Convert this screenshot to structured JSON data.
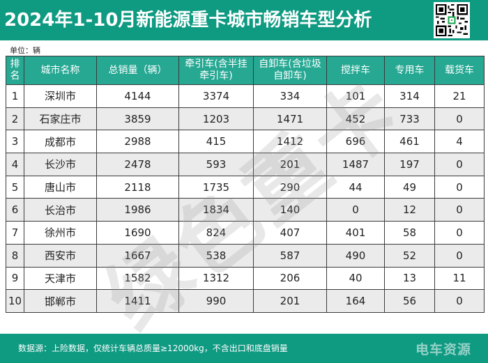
{
  "header": {
    "title": "2024年1-10月新能源重卡城市畅销车型分析",
    "qr_icon": "qr-code-icon",
    "color": "#0f9a82"
  },
  "unit_note": "单位：辆",
  "table": {
    "header_color": "#26a893",
    "stripe_color": "#ebebeb",
    "columns": [
      "排名",
      "城市名称",
      "总销量（辆）",
      "牵引车(含半挂牵引车)",
      "自卸车(含垃圾自卸车)",
      "搅拌车",
      "专用车",
      "载货车"
    ],
    "rows": [
      [
        "1",
        "深圳市",
        "4144",
        "3374",
        "334",
        "101",
        "314",
        "21"
      ],
      [
        "2",
        "石家庄市",
        "3859",
        "1203",
        "1471",
        "452",
        "733",
        "0"
      ],
      [
        "3",
        "成都市",
        "2988",
        "415",
        "1412",
        "696",
        "461",
        "4"
      ],
      [
        "4",
        "长沙市",
        "2478",
        "593",
        "201",
        "1487",
        "197",
        "0"
      ],
      [
        "5",
        "唐山市",
        "2118",
        "1735",
        "290",
        "44",
        "49",
        "0"
      ],
      [
        "6",
        "长治市",
        "1986",
        "1834",
        "140",
        "0",
        "12",
        "0"
      ],
      [
        "7",
        "徐州市",
        "1690",
        "824",
        "407",
        "401",
        "58",
        "0"
      ],
      [
        "8",
        "西安市",
        "1667",
        "538",
        "587",
        "490",
        "52",
        "0"
      ],
      [
        "9",
        "天津市",
        "1582",
        "1312",
        "206",
        "40",
        "13",
        "11"
      ],
      [
        "10",
        "邯郸市",
        "1411",
        "990",
        "201",
        "164",
        "56",
        "0"
      ]
    ]
  },
  "watermark": "绿色重卡",
  "footer": {
    "source": "数据源：上险数据，仅统计车辆总质量≥12000kg，不含出口和底盘销量",
    "brand": "电车资源"
  }
}
